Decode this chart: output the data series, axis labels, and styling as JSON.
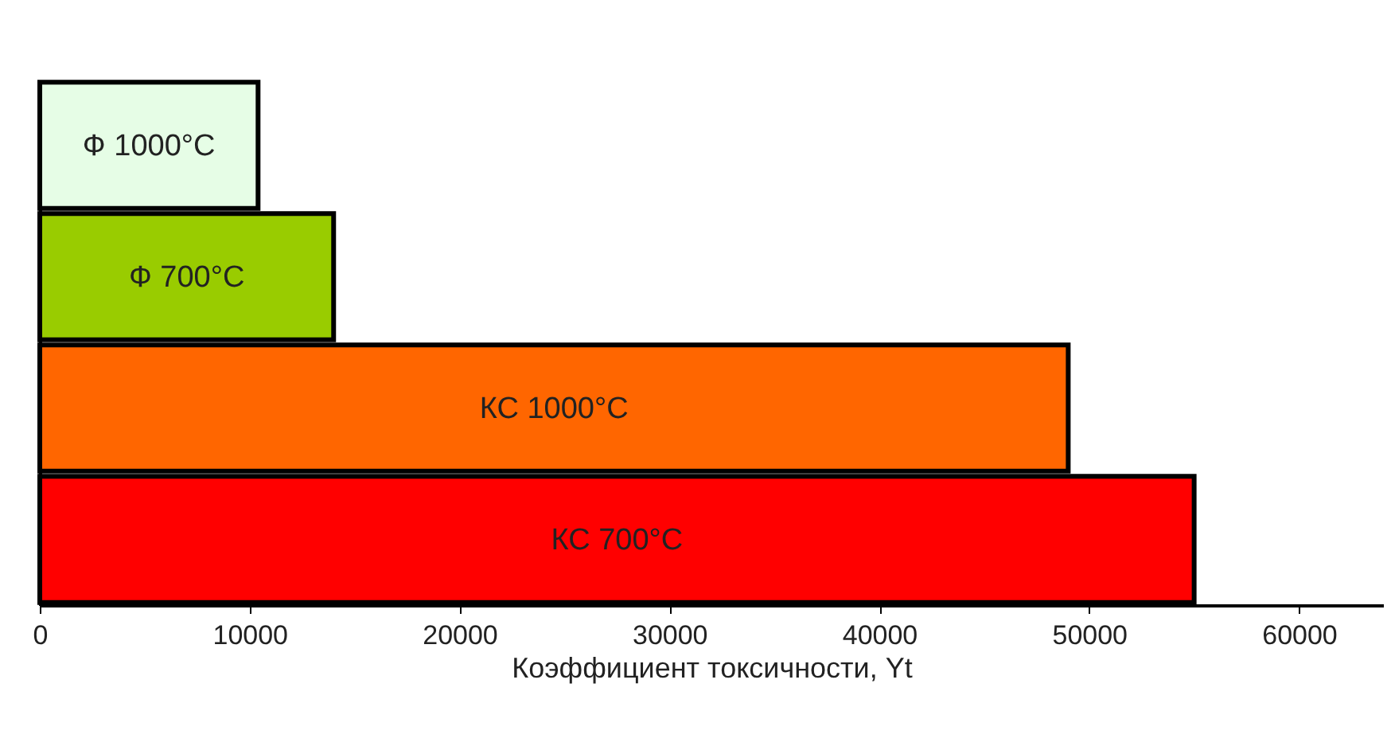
{
  "chart_data": {
    "type": "bar",
    "orientation": "horizontal",
    "xlabel": "Коэффициент токсичности, Yt",
    "categories": [
      "Ф 1000°C",
      "Ф 700°C",
      "КС 1000°C",
      "КС 700°C"
    ],
    "values": [
      10400,
      14000,
      49000,
      55000
    ],
    "colors": [
      "#e6fde6",
      "#99cc00",
      "#ff6600",
      "#ff0000"
    ],
    "xlim": [
      0,
      64000
    ],
    "xticks": [
      0,
      10000,
      20000,
      30000,
      40000,
      50000,
      60000
    ],
    "grid": false,
    "tick_labels": "x"
  }
}
